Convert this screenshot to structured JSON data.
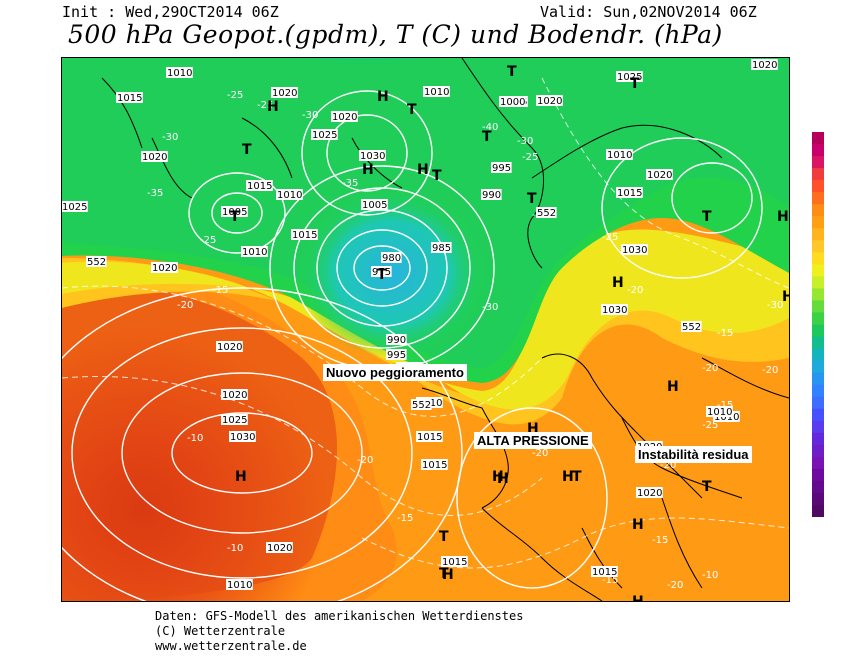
{
  "header": {
    "init": "Init : Wed,29OCT2014 06Z",
    "valid": "Valid: Sun,02NOV2014 06Z",
    "title": "500 hPa Geopot.(gpdm), T (C) und Bodendr. (hPa)"
  },
  "annotations": {
    "nuovo_peggioramento": "Nuovo peggioramento",
    "alta_pressione": "ALTA PRESSIONE",
    "instabilita_residua": "Instabilità residua"
  },
  "pressure_centers": {
    "high": "H",
    "low": "T"
  },
  "isobar_labels": [
    "1010",
    "1020",
    "1015",
    "1020",
    "1030",
    "1025",
    "1020",
    "1015",
    "1010",
    "1005",
    "1005",
    "1010",
    "1015",
    "1020",
    "1025",
    "1030",
    "1025",
    "1020",
    "1015",
    "1010",
    "1030",
    "1020",
    "1025",
    "1010",
    "1000",
    "995",
    "990",
    "985",
    "980",
    "975",
    "990",
    "995",
    "1000",
    "1010",
    "1015",
    "1020",
    "1025",
    "1030",
    "1015",
    "1010",
    "1020",
    "1020",
    "1015",
    "1020",
    "1010",
    "1020",
    "1015",
    "1020",
    "1010"
  ],
  "temperature_labels": [
    "-25",
    "-30",
    "-35",
    "-25",
    "-20",
    "-15",
    "-10",
    "-10",
    "-15",
    "-20",
    "-25",
    "-30",
    "-35",
    "-40",
    "-30",
    "-25",
    "-20",
    "-30",
    "-25",
    "-20",
    "-15",
    "-20",
    "-15",
    "-10",
    "-15",
    "-20",
    "-15",
    "-20",
    "-25",
    "-30",
    "-20",
    "-20"
  ],
  "geopotential_labels": [
    "552",
    "552",
    "552",
    "552"
  ],
  "color_scale": {
    "colors": [
      "#b4005a",
      "#c8006e",
      "#dc1464",
      "#f03c3c",
      "#ff5028",
      "#ff6e1e",
      "#ff8c14",
      "#ffa014",
      "#ffb41e",
      "#ffc828",
      "#ffdc1e",
      "#f0f01e",
      "#c8f028",
      "#96e632",
      "#64dc3c",
      "#3cd246",
      "#1ec85a",
      "#14be8c",
      "#14b4be",
      "#1eaadc",
      "#2896f0",
      "#3282ff",
      "#3c6eff",
      "#4650ff",
      "#5a3cf0",
      "#6428dc",
      "#6e1ec8",
      "#7814b4",
      "#6e0aa0",
      "#640a8c",
      "#5a0a78",
      "#500a64"
    ]
  },
  "footer": {
    "line1": "Daten: GFS-Modell des amerikanischen Wetterdienstes",
    "line2": "(C) Wetterzentrale",
    "line3": "www.wetterzentrale.de"
  },
  "colors": {
    "deep_low": "#3c28d2",
    "cold": "#1ec8f0",
    "cool_green": "#23d24b",
    "mild": "#f0e61e",
    "warm": "#ffa514",
    "hot": "#f05a14",
    "very_hot": "#dc3214",
    "land_line": "#000000",
    "isobar": "#ffffff"
  }
}
